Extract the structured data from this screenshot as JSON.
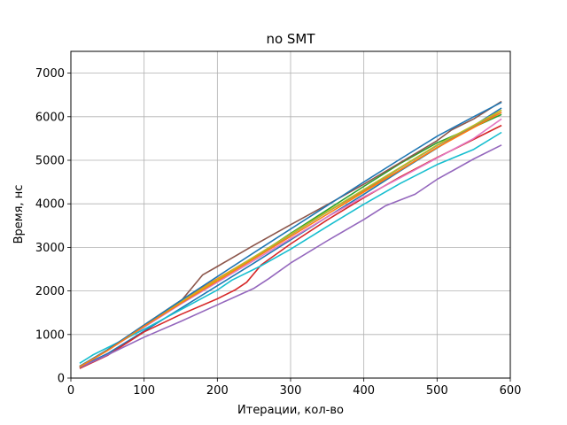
{
  "chart_data": {
    "type": "line",
    "title": "no SMT",
    "xlabel": "Итерации, кол-во",
    "ylabel": "Время, нс",
    "xlim": [
      0,
      600
    ],
    "ylim": [
      0,
      7500
    ],
    "xticks": [
      0,
      100,
      200,
      300,
      400,
      500,
      600
    ],
    "yticks": [
      0,
      1000,
      2000,
      3000,
      4000,
      5000,
      6000,
      7000
    ],
    "grid": true,
    "series": [
      {
        "color": "#1f77b4",
        "x": [
          12,
          50,
          100,
          150,
          200,
          250,
          300,
          350,
          400,
          450,
          500,
          550,
          588
        ],
        "y": [
          250,
          560,
          1080,
          1600,
          2120,
          2640,
          3170,
          3700,
          4220,
          4760,
          5280,
          5790,
          6200
        ]
      },
      {
        "color": "#ff7f0e",
        "x": [
          12,
          50,
          100,
          150,
          200,
          250,
          300,
          350,
          400,
          450,
          500,
          550,
          588
        ],
        "y": [
          260,
          640,
          1220,
          1780,
          2280,
          2780,
          3300,
          3810,
          4300,
          4780,
          5290,
          5760,
          6150
        ]
      },
      {
        "color": "#2ca02c",
        "x": [
          12,
          50,
          100,
          150,
          200,
          250,
          300,
          350,
          400,
          450,
          500,
          550,
          588
        ],
        "y": [
          270,
          640,
          1200,
          1720,
          2240,
          2760,
          3320,
          3860,
          4400,
          4930,
          5400,
          5760,
          6050
        ]
      },
      {
        "color": "#d62728",
        "x": [
          12,
          50,
          100,
          150,
          200,
          225,
          240,
          260,
          300,
          350,
          400,
          450,
          500,
          550,
          588
        ],
        "y": [
          220,
          520,
          1060,
          1460,
          1820,
          2030,
          2200,
          2600,
          3080,
          3630,
          4140,
          4620,
          5060,
          5480,
          5800
        ]
      },
      {
        "color": "#9467bd",
        "x": [
          12,
          50,
          100,
          150,
          200,
          250,
          270,
          300,
          350,
          400,
          430,
          470,
          500,
          550,
          588
        ],
        "y": [
          240,
          530,
          940,
          1300,
          1680,
          2060,
          2280,
          2640,
          3150,
          3640,
          3960,
          4220,
          4560,
          5030,
          5350
        ]
      },
      {
        "color": "#8c564b",
        "x": [
          12,
          50,
          100,
          150,
          180,
          200,
          250,
          300,
          350,
          400,
          450,
          500,
          520,
          550,
          588
        ],
        "y": [
          250,
          640,
          1180,
          1760,
          2370,
          2560,
          3050,
          3520,
          3980,
          4450,
          4950,
          5450,
          5700,
          5950,
          6350
        ]
      },
      {
        "color": "#e377c2",
        "x": [
          12,
          50,
          100,
          150,
          200,
          250,
          300,
          350,
          400,
          450,
          500,
          550,
          588
        ],
        "y": [
          250,
          630,
          1170,
          1700,
          2200,
          2700,
          3200,
          3700,
          4160,
          4600,
          5050,
          5500,
          5950
        ]
      },
      {
        "color": "#7f7f7f",
        "x": [
          12,
          50,
          100,
          150,
          200,
          250,
          300,
          350,
          400,
          450,
          500,
          550,
          588
        ],
        "y": [
          250,
          640,
          1190,
          1720,
          2240,
          2760,
          3290,
          3810,
          4320,
          4830,
          5340,
          5770,
          6100
        ]
      },
      {
        "color": "#bcbd22",
        "x": [
          12,
          50,
          100,
          150,
          200,
          250,
          300,
          350,
          400,
          450,
          500,
          550,
          588
        ],
        "y": [
          260,
          650,
          1210,
          1740,
          2260,
          2780,
          3300,
          3820,
          4330,
          4840,
          5350,
          5800,
          6150
        ]
      },
      {
        "color": "#17becf",
        "x": [
          12,
          30,
          60,
          100,
          150,
          200,
          220,
          260,
          300,
          350,
          400,
          450,
          500,
          550,
          588
        ],
        "y": [
          340,
          530,
          780,
          1120,
          1570,
          2020,
          2250,
          2580,
          2960,
          3480,
          3990,
          4470,
          4900,
          5250,
          5640
        ]
      },
      {
        "color": "#1f77b4",
        "x": [
          12,
          50,
          100,
          150,
          200,
          250,
          300,
          350,
          400,
          450,
          500,
          550,
          588
        ],
        "y": [
          270,
          650,
          1220,
          1780,
          2330,
          2880,
          3420,
          3960,
          4500,
          5030,
          5550,
          6000,
          6330
        ]
      },
      {
        "color": "#ff7f0e",
        "x": [
          12,
          50,
          100,
          150,
          200,
          250,
          300,
          350,
          400,
          450,
          500,
          550,
          588
        ],
        "y": [
          260,
          630,
          1190,
          1720,
          2230,
          2740,
          3250,
          3760,
          4270,
          4780,
          5290,
          5750,
          6100
        ]
      }
    ]
  }
}
